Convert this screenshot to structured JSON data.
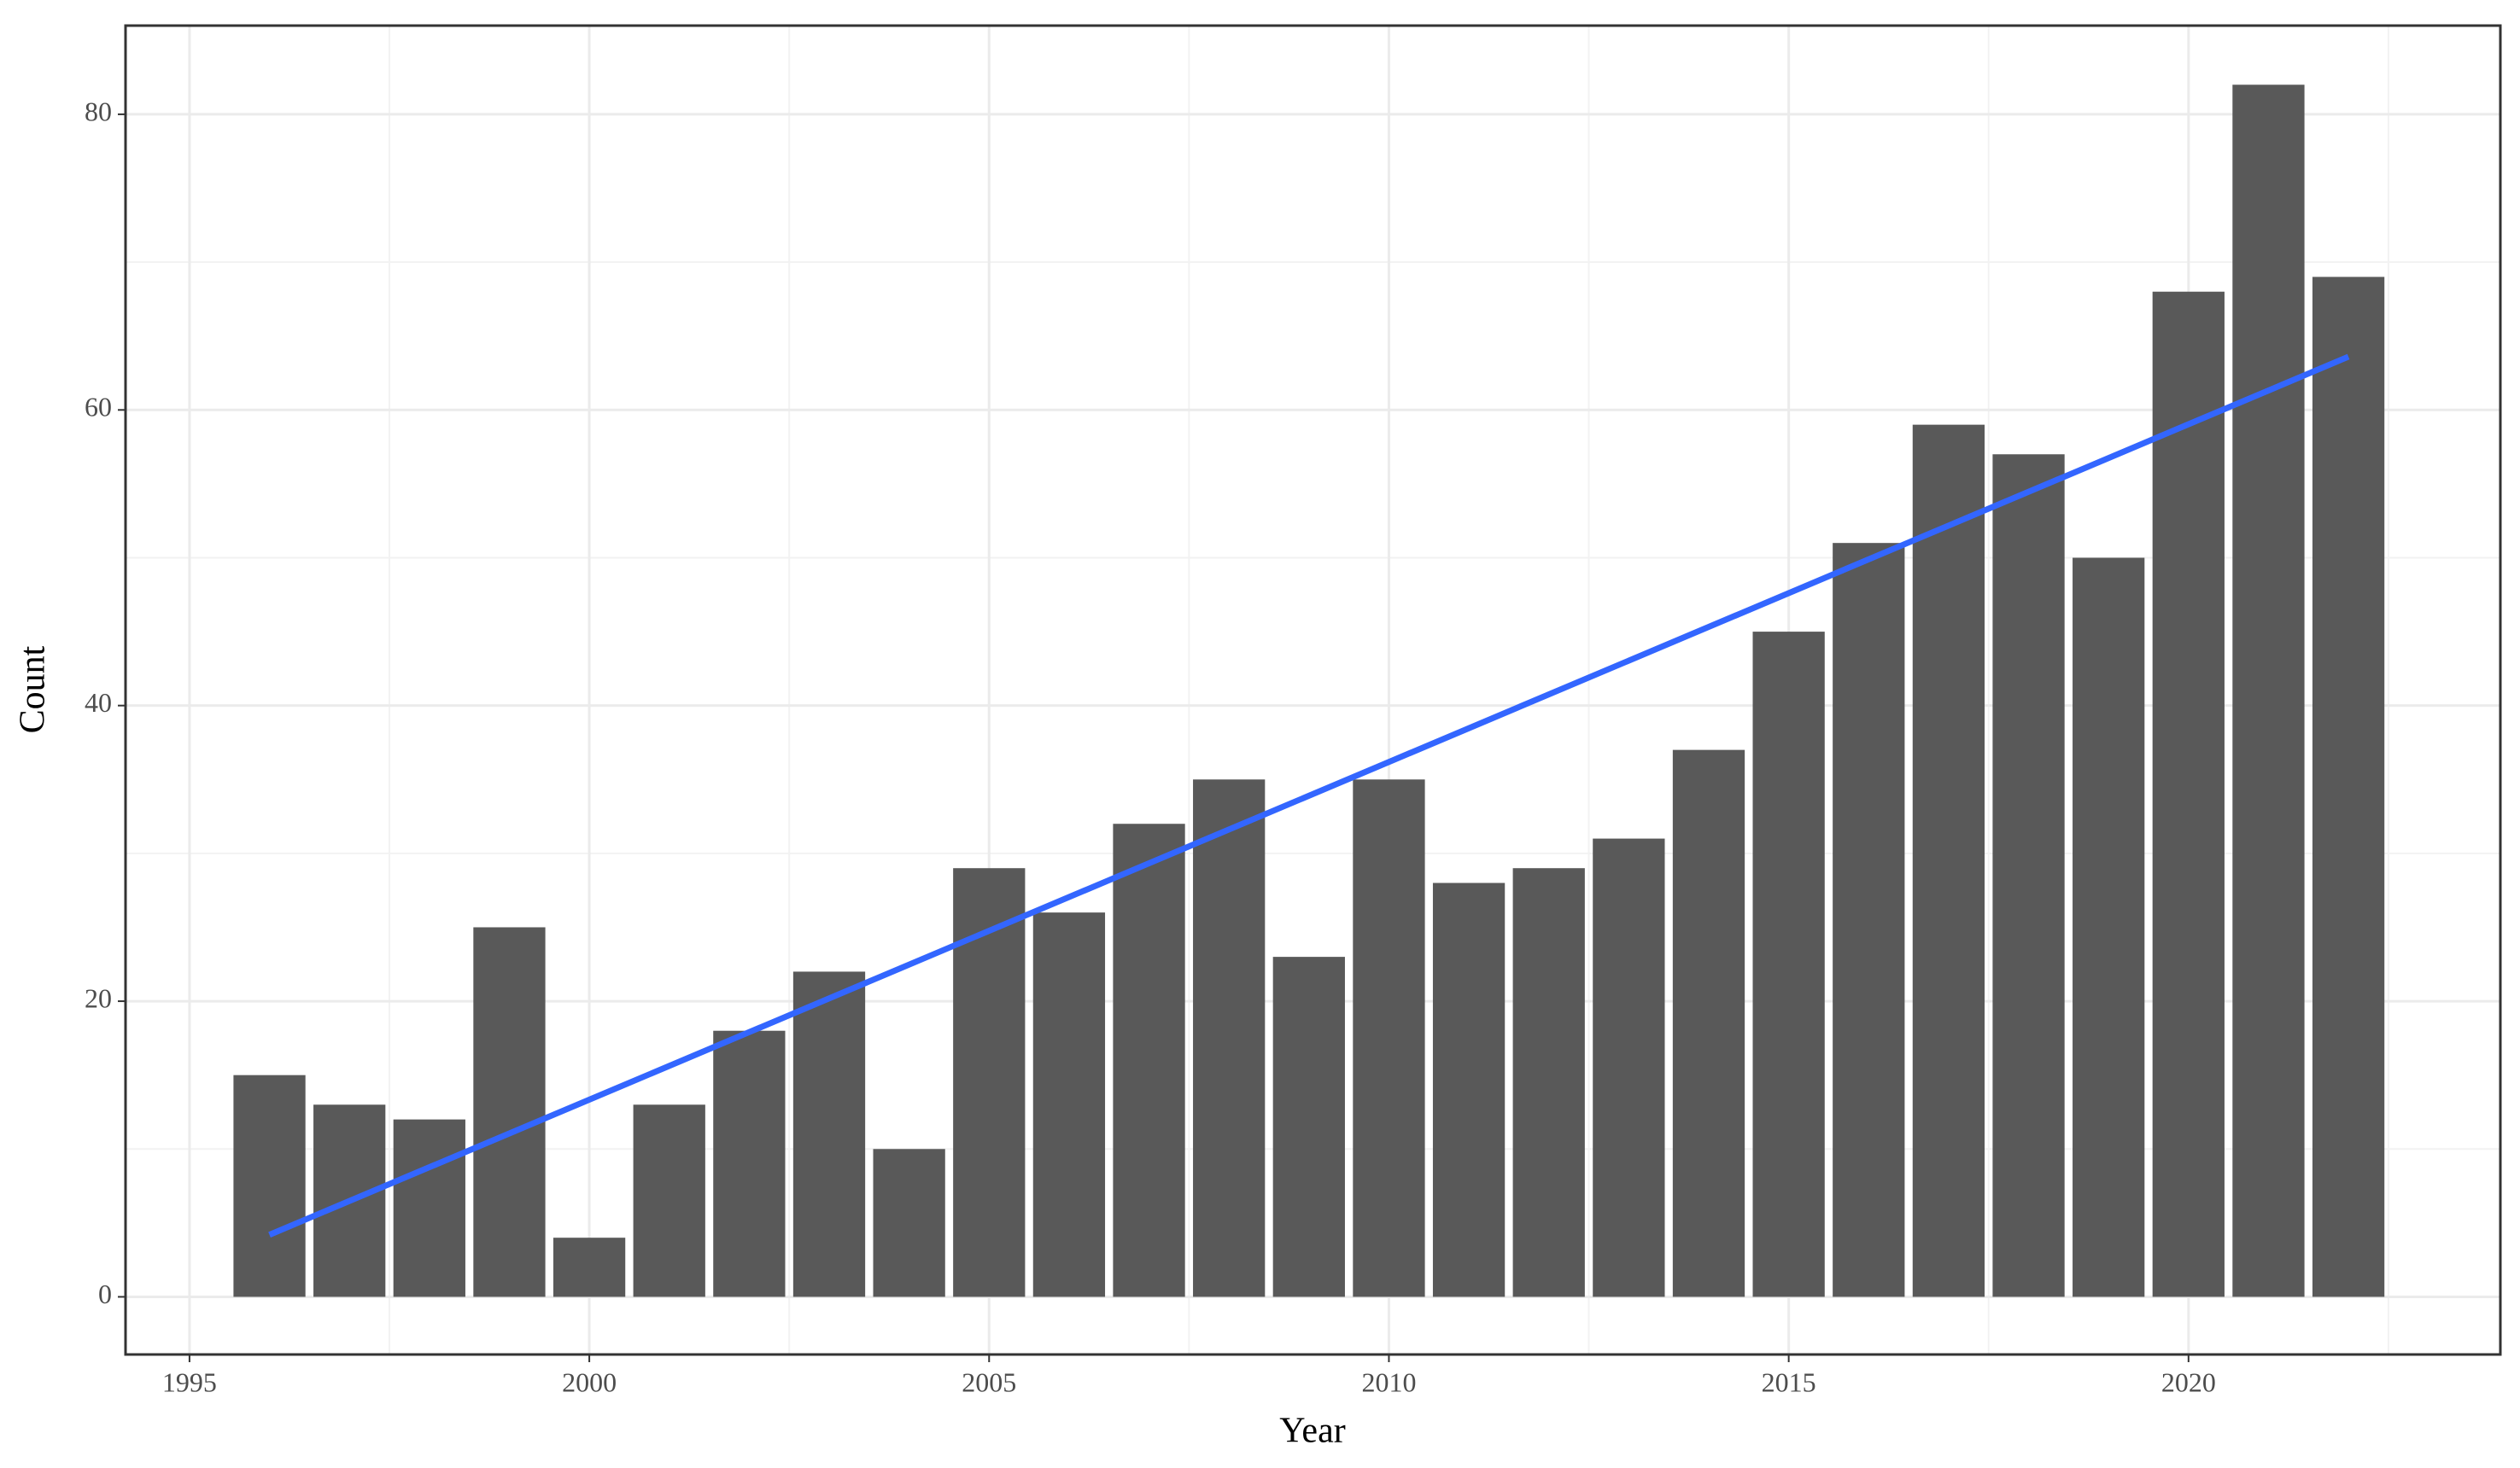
{
  "chart_data": {
    "type": "bar",
    "x_label": "Year",
    "y_label": "Count",
    "x": [
      1996,
      1997,
      1998,
      1999,
      2000,
      2001,
      2002,
      2003,
      2004,
      2005,
      2006,
      2007,
      2008,
      2009,
      2010,
      2011,
      2012,
      2013,
      2014,
      2015,
      2016,
      2017,
      2018,
      2019,
      2020,
      2021,
      2022
    ],
    "values": [
      15,
      13,
      12,
      25,
      4,
      13,
      18,
      22,
      10,
      29,
      26,
      32,
      35,
      23,
      35,
      28,
      29,
      31,
      37,
      45,
      51,
      59,
      57,
      50,
      68,
      82,
      69
    ],
    "color": "#595959",
    "trend": {
      "x": [
        1996,
        2022
      ],
      "values": [
        4.2,
        63.6
      ],
      "color": "#3366ff"
    },
    "xlim": [
      1994.2,
      2023.9
    ],
    "ylim": [
      -3.9,
      86
    ],
    "xticks": [
      1995,
      2000,
      2005,
      2010,
      2015,
      2020
    ],
    "yticks": [
      0,
      20,
      40,
      60,
      80
    ],
    "xminor": [
      1997.5,
      2002.5,
      2007.5,
      2012.5,
      2017.5,
      2022.5
    ],
    "yminor": [
      10,
      30,
      50,
      70
    ],
    "grid": true
  }
}
